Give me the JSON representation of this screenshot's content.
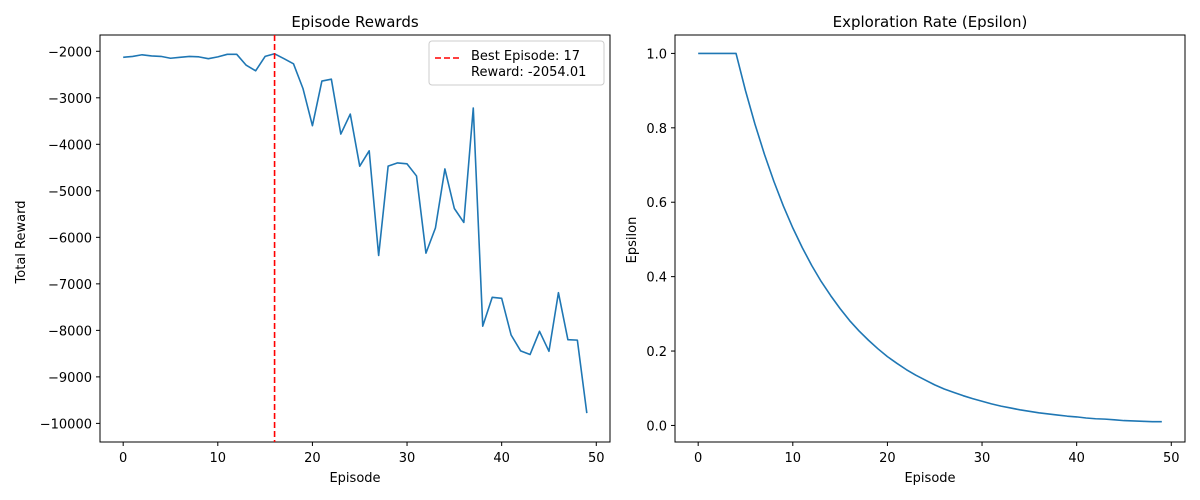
{
  "chart_data": [
    {
      "type": "line",
      "title": "Episode Rewards",
      "xlabel": "Episode",
      "ylabel": "Total Reward",
      "xlim": [
        -2.45,
        51.45
      ],
      "ylim": [
        -10400,
        -1650
      ],
      "xticks": [
        0,
        10,
        20,
        30,
        40,
        50
      ],
      "yticks": [
        -10000,
        -9000,
        -8000,
        -7000,
        -6000,
        -5000,
        -4000,
        -3000,
        -2000
      ],
      "grid": false,
      "legend_position": "top-right",
      "series": [
        {
          "color": "#1f77b4",
          "x": [
            0,
            1,
            2,
            3,
            4,
            5,
            6,
            7,
            8,
            9,
            10,
            11,
            12,
            13,
            14,
            15,
            16,
            17,
            18,
            19,
            20,
            21,
            22,
            23,
            24,
            25,
            26,
            27,
            28,
            29,
            30,
            31,
            32,
            33,
            34,
            35,
            36,
            37,
            38,
            39,
            40,
            41,
            42,
            43,
            44,
            45,
            46,
            47,
            48,
            49
          ],
          "y": [
            -2130,
            -2110,
            -2075,
            -2100,
            -2110,
            -2150,
            -2130,
            -2110,
            -2120,
            -2160,
            -2120,
            -2065,
            -2065,
            -2300,
            -2420,
            -2110,
            -2054.01,
            -2160,
            -2270,
            -2800,
            -3600,
            -2640,
            -2600,
            -3780,
            -3350,
            -4470,
            -4140,
            -6390,
            -4470,
            -4400,
            -4420,
            -4680,
            -6340,
            -5800,
            -4530,
            -5380,
            -5680,
            -3220,
            -7910,
            -7290,
            -7310,
            -8100,
            -8440,
            -8520,
            -8020,
            -8450,
            -7190,
            -8200,
            -8210,
            -9780
          ]
        }
      ],
      "vline": {
        "x": 16,
        "color": "#ff0000",
        "style": "dashed",
        "legend_line1": "Best Episode: 17",
        "legend_line2": "Reward: -2054.01"
      }
    },
    {
      "type": "line",
      "title": "Exploration Rate (Epsilon)",
      "xlabel": "Episode",
      "ylabel": "Epsilon",
      "xlim": [
        -2.45,
        51.45
      ],
      "ylim": [
        -0.0445,
        1.0495
      ],
      "xticks": [
        0,
        10,
        20,
        30,
        40,
        50
      ],
      "yticks": [
        0.0,
        0.2,
        0.4,
        0.6,
        0.8,
        1.0
      ],
      "grid": false,
      "series": [
        {
          "color": "#1f77b4",
          "x": [
            0,
            1,
            2,
            3,
            4,
            5,
            6,
            7,
            8,
            9,
            10,
            11,
            12,
            13,
            14,
            15,
            16,
            17,
            18,
            19,
            20,
            21,
            22,
            23,
            24,
            25,
            26,
            27,
            28,
            29,
            30,
            31,
            32,
            33,
            34,
            35,
            36,
            37,
            38,
            39,
            40,
            41,
            42,
            43,
            44,
            45,
            46,
            47,
            48,
            49
          ],
          "y": [
            1.0,
            1.0,
            1.0,
            1.0,
            1.0,
            0.9,
            0.81,
            0.729,
            0.656,
            0.59,
            0.531,
            0.478,
            0.43,
            0.387,
            0.349,
            0.314,
            0.282,
            0.254,
            0.229,
            0.206,
            0.185,
            0.167,
            0.15,
            0.135,
            0.122,
            0.109,
            0.098,
            0.089,
            0.08,
            0.072,
            0.065,
            0.058,
            0.052,
            0.047,
            0.042,
            0.038,
            0.034,
            0.031,
            0.028,
            0.025,
            0.023,
            0.02,
            0.018,
            0.017,
            0.015,
            0.013,
            0.012,
            0.011,
            0.01,
            0.01
          ]
        }
      ]
    }
  ]
}
